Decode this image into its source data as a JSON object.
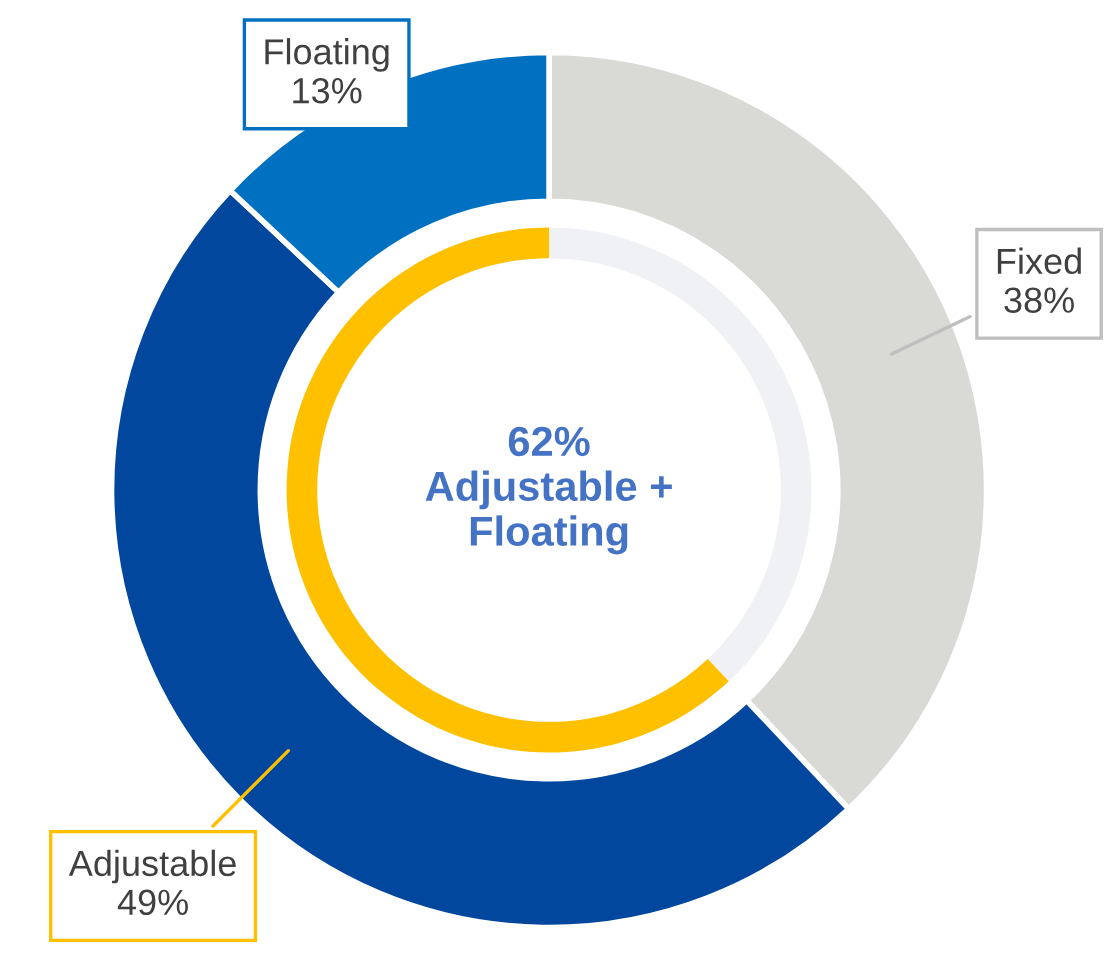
{
  "chart_data": {
    "type": "donut",
    "categories": [
      "Fixed",
      "Adjustable",
      "Floating"
    ],
    "annotations": [
      "62%\nAdjustable +\nFloating"
    ],
    "series": [
      {
        "values": [
          38,
          49,
          13
        ],
        "colors": [
          "#d9d9d6",
          "#00479d",
          "#0070c0"
        ],
        "value_labels": [
          "38%",
          "49%",
          "13%"
        ]
      },
      {
        "values": [
          38,
          62,
          null
        ],
        "colors": [
          "#eff1f4",
          "#ffc000",
          null
        ]
      }
    ]
  }
}
